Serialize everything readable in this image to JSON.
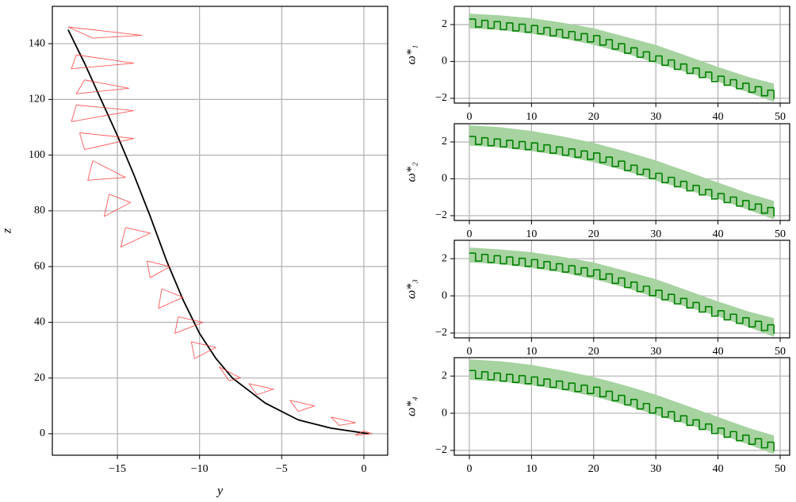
{
  "chart_data": [
    {
      "type": "line",
      "xlabel": "y",
      "ylabel": "z",
      "xlim": [
        -18.96,
        1.45
      ],
      "ylim": [
        -7.7,
        153.4
      ],
      "xticks": [
        {
          "value": -15,
          "label": "−15"
        },
        {
          "value": -10,
          "label": "−10"
        },
        {
          "value": -5,
          "label": "−5"
        },
        0
      ],
      "yticks": [
        0,
        20,
        40,
        60,
        80,
        100,
        120,
        140
      ],
      "grid": true,
      "series": [
        {
          "color": "#000000",
          "x": [
            0.3,
            -2,
            -4,
            -6,
            -8,
            -9,
            -10,
            -11,
            -12,
            -13,
            -14,
            -15,
            -16,
            -17,
            -18
          ],
          "values": [
            0,
            2,
            5,
            11,
            20,
            27,
            36,
            48,
            62,
            78,
            93,
            107,
            120,
            133,
            145
          ]
        },
        {
          "color": "#ff3030",
          "x": [
            -18,
            -13.5,
            -16.5,
            -18,
            null,
            -17.5,
            -14,
            -17.8,
            -17.5,
            null,
            -17,
            -14.3,
            -17.5,
            -17,
            null,
            -17.5,
            -14,
            -17.8,
            -17.5,
            null,
            -17.3,
            -14,
            -17,
            -17.3,
            null,
            -16.5,
            -14.5,
            -16.8,
            -16.5,
            null,
            -15.5,
            -14.2,
            -15.8,
            -15.5,
            null,
            -14.5,
            -13,
            -14.8,
            -14.5,
            null,
            -13.2,
            -11.8,
            -13,
            -13.2,
            null,
            -12.3,
            -11,
            -12.5,
            -12.3,
            null,
            -11.3,
            -9.8,
            -11.5,
            -11.3,
            null,
            -10.5,
            -9,
            -10.3,
            -10.5,
            null,
            -8.8,
            -7.5,
            -8.2,
            -8.8,
            null,
            -7,
            -5.5,
            -6.5,
            -7,
            null,
            -4.5,
            -3,
            -4,
            -4.5,
            null,
            -2,
            -0.5,
            -1.5,
            -2,
            null,
            0,
            0.5,
            -0.5,
            0
          ],
          "values": [
            146,
            143,
            142,
            146,
            null,
            136,
            133,
            131,
            136,
            null,
            127,
            124,
            122,
            127,
            null,
            118,
            116,
            112,
            118,
            null,
            108,
            106,
            102,
            108,
            null,
            98,
            92,
            91,
            98,
            null,
            86,
            83,
            78,
            86,
            null,
            74,
            72,
            67,
            74,
            null,
            62,
            60,
            56,
            62,
            null,
            52,
            49,
            45,
            52,
            null,
            42,
            40,
            36,
            42,
            null,
            33,
            31,
            27,
            33,
            null,
            24,
            20,
            19,
            24,
            null,
            18,
            16,
            14,
            18,
            null,
            12,
            10,
            8,
            12,
            null,
            6,
            4,
            3,
            6,
            null,
            1,
            0,
            -0.5,
            1
          ]
        }
      ]
    },
    {
      "type": "step",
      "ylabel": "ω*₁",
      "xlim": [
        -2.42,
        51.53
      ],
      "ylim": [
        -2.26,
        2.99
      ],
      "xticks": [
        0,
        10,
        20,
        30,
        40,
        50
      ],
      "yticks": [
        {
          "value": -2,
          "label": "−2"
        },
        0,
        2
      ],
      "grid": true,
      "x": [
        0,
        1,
        2,
        3,
        4,
        5,
        6,
        7,
        8,
        9,
        10,
        11,
        12,
        13,
        14,
        15,
        16,
        17,
        18,
        19,
        20,
        21,
        22,
        23,
        24,
        25,
        26,
        27,
        28,
        29,
        30,
        31,
        32,
        33,
        34,
        35,
        36,
        37,
        38,
        39,
        40,
        41,
        42,
        43,
        44,
        45,
        46,
        47,
        48,
        49
      ],
      "series": [
        {
          "color": "#008000",
          "values": [
            2.3,
            1.87,
            2.23,
            1.8,
            2.16,
            1.73,
            2.09,
            1.66,
            2.02,
            1.59,
            1.95,
            1.5,
            1.84,
            1.39,
            1.73,
            1.28,
            1.62,
            1.17,
            1.51,
            1.06,
            1.4,
            0.89,
            1.18,
            0.67,
            0.96,
            0.45,
            0.74,
            0.23,
            0.52,
            0.01,
            0.3,
            -0.21,
            0.08,
            -0.43,
            -0.14,
            -0.65,
            -0.36,
            -0.87,
            -0.58,
            -1.09,
            -0.8,
            -1.29,
            -0.99,
            -1.48,
            -1.18,
            -1.67,
            -1.37,
            -1.86,
            -1.56,
            -2.05
          ]
        }
      ],
      "band": {
        "color": "#a6d3a0",
        "x": [
          0,
          5,
          10,
          15,
          20,
          25,
          30,
          35,
          40,
          45,
          49
        ],
        "upper": [
          2.6,
          2.5,
          2.35,
          2.1,
          1.8,
          1.35,
          0.9,
          0.3,
          -0.3,
          -0.85,
          -1.2
        ],
        "lower": [
          1.8,
          1.7,
          1.5,
          1.25,
          0.9,
          0.45,
          -0.1,
          -0.6,
          -1.1,
          -1.7,
          -2.2
        ]
      }
    },
    {
      "type": "step",
      "ylabel": "ω*₂",
      "xlim": [
        -2.42,
        51.53
      ],
      "ylim": [
        -2.26,
        2.99
      ],
      "xticks": [
        0,
        10,
        20,
        30,
        40,
        50
      ],
      "yticks": [
        {
          "value": -2,
          "label": "−2"
        },
        0,
        2
      ],
      "grid": true,
      "x": [
        0,
        1,
        2,
        3,
        4,
        5,
        6,
        7,
        8,
        9,
        10,
        11,
        12,
        13,
        14,
        15,
        16,
        17,
        18,
        19,
        20,
        21,
        22,
        23,
        24,
        25,
        26,
        27,
        28,
        29,
        30,
        31,
        32,
        33,
        34,
        35,
        36,
        37,
        38,
        39,
        40,
        41,
        42,
        43,
        44,
        45,
        46,
        47,
        48,
        49
      ],
      "series": [
        {
          "color": "#008000",
          "values": [
            2.3,
            1.87,
            2.23,
            1.8,
            2.16,
            1.73,
            2.09,
            1.66,
            2.02,
            1.59,
            1.95,
            1.5,
            1.84,
            1.39,
            1.73,
            1.28,
            1.62,
            1.17,
            1.51,
            1.06,
            1.4,
            0.89,
            1.18,
            0.67,
            0.96,
            0.45,
            0.74,
            0.23,
            0.52,
            0.01,
            0.3,
            -0.21,
            0.08,
            -0.43,
            -0.14,
            -0.65,
            -0.36,
            -0.87,
            -0.58,
            -1.09,
            -0.8,
            -1.29,
            -0.99,
            -1.48,
            -1.18,
            -1.67,
            -1.37,
            -1.86,
            -1.56,
            -2.05
          ]
        }
      ],
      "band": {
        "color": "#a6d3a0",
        "x": [
          0,
          5,
          10,
          15,
          20,
          25,
          30,
          35,
          40,
          45,
          49
        ],
        "upper": [
          2.9,
          2.8,
          2.6,
          2.3,
          1.95,
          1.5,
          1.0,
          0.4,
          -0.2,
          -0.8,
          -1.2
        ],
        "lower": [
          1.8,
          1.7,
          1.5,
          1.25,
          0.9,
          0.45,
          -0.1,
          -0.6,
          -1.1,
          -1.7,
          -2.2
        ]
      }
    },
    {
      "type": "step",
      "ylabel": "ω*₃",
      "xlim": [
        -2.42,
        51.53
      ],
      "ylim": [
        -2.26,
        2.99
      ],
      "xticks": [
        0,
        10,
        20,
        30,
        40,
        50
      ],
      "yticks": [
        {
          "value": -2,
          "label": "−2"
        },
        0,
        2
      ],
      "grid": true,
      "x": [
        0,
        1,
        2,
        3,
        4,
        5,
        6,
        7,
        8,
        9,
        10,
        11,
        12,
        13,
        14,
        15,
        16,
        17,
        18,
        19,
        20,
        21,
        22,
        23,
        24,
        25,
        26,
        27,
        28,
        29,
        30,
        31,
        32,
        33,
        34,
        35,
        36,
        37,
        38,
        39,
        40,
        41,
        42,
        43,
        44,
        45,
        46,
        47,
        48,
        49
      ],
      "series": [
        {
          "color": "#008000",
          "values": [
            2.3,
            1.87,
            2.23,
            1.8,
            2.16,
            1.73,
            2.09,
            1.66,
            2.02,
            1.59,
            1.95,
            1.5,
            1.84,
            1.39,
            1.73,
            1.28,
            1.62,
            1.17,
            1.51,
            1.06,
            1.4,
            0.89,
            1.18,
            0.67,
            0.96,
            0.45,
            0.74,
            0.23,
            0.52,
            0.01,
            0.3,
            -0.21,
            0.08,
            -0.43,
            -0.14,
            -0.65,
            -0.36,
            -0.87,
            -0.58,
            -1.09,
            -0.8,
            -1.29,
            -0.99,
            -1.48,
            -1.18,
            -1.67,
            -1.37,
            -1.86,
            -1.56,
            -2.05
          ]
        }
      ],
      "band": {
        "color": "#a6d3a0",
        "x": [
          0,
          5,
          10,
          15,
          20,
          25,
          30,
          35,
          40,
          45,
          49
        ],
        "upper": [
          2.6,
          2.5,
          2.35,
          2.1,
          1.8,
          1.35,
          0.9,
          0.3,
          -0.3,
          -0.85,
          -1.2
        ],
        "lower": [
          1.8,
          1.7,
          1.5,
          1.25,
          0.9,
          0.45,
          -0.1,
          -0.6,
          -1.1,
          -1.7,
          -2.2
        ]
      }
    },
    {
      "type": "step",
      "ylabel": "ω*₄",
      "xlim": [
        -2.42,
        51.53
      ],
      "ylim": [
        -2.26,
        2.99
      ],
      "xticks": [
        0,
        10,
        20,
        30,
        40,
        50
      ],
      "yticks": [
        {
          "value": -2,
          "label": "−2"
        },
        0,
        2
      ],
      "grid": true,
      "x": [
        0,
        1,
        2,
        3,
        4,
        5,
        6,
        7,
        8,
        9,
        10,
        11,
        12,
        13,
        14,
        15,
        16,
        17,
        18,
        19,
        20,
        21,
        22,
        23,
        24,
        25,
        26,
        27,
        28,
        29,
        30,
        31,
        32,
        33,
        34,
        35,
        36,
        37,
        38,
        39,
        40,
        41,
        42,
        43,
        44,
        45,
        46,
        47,
        48,
        49
      ],
      "series": [
        {
          "color": "#008000",
          "values": [
            2.3,
            1.87,
            2.23,
            1.8,
            2.16,
            1.73,
            2.09,
            1.66,
            2.02,
            1.59,
            1.95,
            1.5,
            1.84,
            1.39,
            1.73,
            1.28,
            1.62,
            1.17,
            1.51,
            1.06,
            1.4,
            0.89,
            1.18,
            0.67,
            0.96,
            0.45,
            0.74,
            0.23,
            0.52,
            0.01,
            0.3,
            -0.21,
            0.08,
            -0.43,
            -0.14,
            -0.65,
            -0.36,
            -0.87,
            -0.58,
            -1.09,
            -0.8,
            -1.29,
            -0.99,
            -1.48,
            -1.18,
            -1.67,
            -1.37,
            -1.86,
            -1.56,
            -2.05
          ]
        }
      ],
      "band": {
        "color": "#a6d3a0",
        "x": [
          0,
          5,
          10,
          15,
          20,
          25,
          30,
          35,
          40,
          45,
          49
        ],
        "upper": [
          2.9,
          2.8,
          2.6,
          2.3,
          1.95,
          1.5,
          1.0,
          0.4,
          -0.2,
          -0.8,
          -1.2
        ],
        "lower": [
          1.8,
          1.7,
          1.5,
          1.25,
          0.9,
          0.45,
          -0.1,
          -0.6,
          -1.1,
          -1.7,
          -2.2
        ]
      }
    }
  ]
}
